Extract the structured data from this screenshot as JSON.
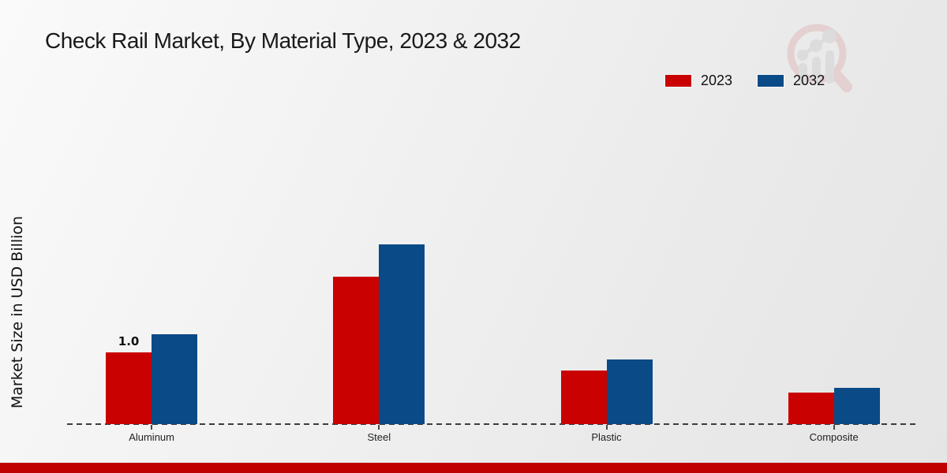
{
  "page": {
    "title": "Check Rail Market, By Material Type, 2023 & 2032"
  },
  "legend": {
    "items": [
      {
        "label": "2023",
        "color": "#c90101"
      },
      {
        "label": "2032",
        "color": "#0a4a87"
      }
    ]
  },
  "chart_data": {
    "type": "bar",
    "title": "Check Rail Market, By Material Type, 2023 & 2032",
    "categories": [
      "Aluminum",
      "Steel",
      "Plastic",
      "Composite"
    ],
    "series": [
      {
        "name": "2023",
        "color": "#c90101",
        "values": [
          1.0,
          2.05,
          0.75,
          0.44
        ]
      },
      {
        "name": "2032",
        "color": "#0a4a87",
        "values": [
          1.25,
          2.5,
          0.9,
          0.5
        ]
      }
    ],
    "xlabel": "",
    "ylabel": "Market Size in USD Billion",
    "ylim": [
      0,
      2.75
    ],
    "grid": false,
    "y_axis_ticks_visible": false,
    "legend_position": "top-right",
    "baseline_style": "dashed",
    "data_labels": [
      {
        "series": "2023",
        "category": "Aluminum",
        "text": "1.0"
      }
    ]
  },
  "watermark": {
    "icon": "magnifier-growth-chart-logo"
  },
  "footer": {
    "bar_color": "#c00000"
  }
}
